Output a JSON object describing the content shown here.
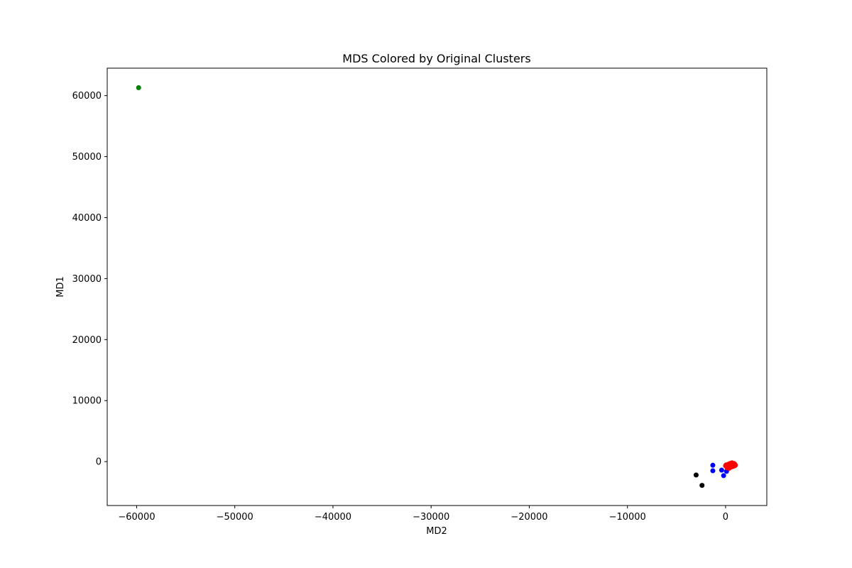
{
  "chart_data": {
    "type": "scatter",
    "title": "MDS Colored by Original Clusters",
    "xlabel": "MD2",
    "ylabel": "MD1",
    "xlim": [
      -63000,
      4200
    ],
    "ylim": [
      -7200,
      64500
    ],
    "xticks": [
      -60000,
      -50000,
      -40000,
      -30000,
      -20000,
      -10000,
      0
    ],
    "xtick_labels": [
      "−60000",
      "−50000",
      "−40000",
      "−30000",
      "−20000",
      "−10000",
      "0"
    ],
    "yticks": [
      0,
      10000,
      20000,
      30000,
      40000,
      50000,
      60000
    ],
    "ytick_labels": [
      "0",
      "10000",
      "20000",
      "30000",
      "40000",
      "50000",
      "60000"
    ],
    "grid": false,
    "series": [
      {
        "color": "#008000",
        "points": [
          [
            -59800,
            61300
          ]
        ]
      },
      {
        "color": "#000000",
        "points": [
          [
            -3000,
            -2200
          ],
          [
            -2400,
            -3900
          ]
        ]
      },
      {
        "color": "#0000ff",
        "points": [
          [
            -1300,
            -600
          ],
          [
            -1300,
            -1500
          ],
          [
            -400,
            -1400
          ],
          [
            -200,
            -2300
          ],
          [
            100,
            -1600
          ]
        ]
      },
      {
        "color": "#ff0000",
        "points": [
          [
            0,
            -700
          ],
          [
            100,
            -800
          ],
          [
            200,
            -600
          ],
          [
            300,
            -900
          ],
          [
            400,
            -500
          ],
          [
            500,
            -700
          ],
          [
            600,
            -400
          ],
          [
            700,
            -600
          ],
          [
            800,
            -500
          ],
          [
            900,
            -700
          ],
          [
            1000,
            -600
          ],
          [
            150,
            -1000
          ],
          [
            350,
            -1100
          ],
          [
            550,
            -900
          ],
          [
            750,
            -800
          ],
          [
            450,
            -300
          ],
          [
            650,
            -200
          ],
          [
            850,
            -300
          ],
          [
            250,
            -450
          ],
          [
            950,
            -450
          ],
          [
            50,
            -550
          ]
        ]
      }
    ]
  }
}
